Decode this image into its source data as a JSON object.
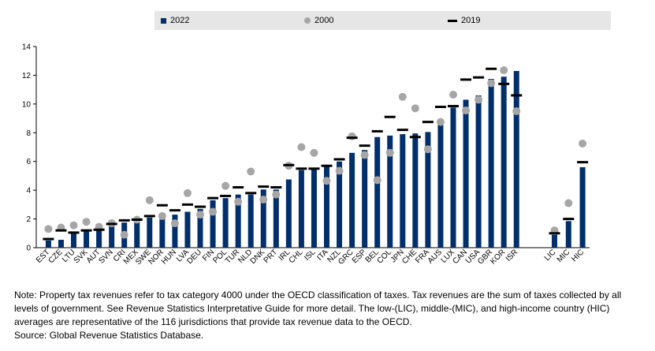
{
  "chart_data": {
    "type": "bar",
    "categories": [
      "EST",
      "CZE",
      "LTU",
      "SVK",
      "AUT",
      "SVN",
      "CRI",
      "MEX",
      "SWE",
      "NOR",
      "HUN",
      "LVA",
      "DEU",
      "FIN",
      "POL",
      "TUR",
      "NLD",
      "DNK",
      "PRT",
      "IRL",
      "CHL",
      "ISL",
      "ITA",
      "NZL",
      "GRC",
      "ESP",
      "BEL",
      "COL",
      "JPN",
      "CHE",
      "FRA",
      "AUS",
      "LUX",
      "CAN",
      "USA",
      "GBR",
      "KOR",
      "ISR",
      "LIC",
      "MIC",
      "HIC"
    ],
    "series": [
      {
        "name": "2022",
        "kind": "bar",
        "color": "#002f6c",
        "values": [
          0.5,
          0.55,
          1.05,
          1.15,
          1.25,
          1.5,
          1.75,
          2.0,
          2.1,
          2.2,
          2.3,
          2.5,
          2.7,
          3.3,
          3.45,
          3.7,
          3.7,
          4.05,
          4.05,
          4.75,
          5.4,
          5.55,
          5.75,
          6.0,
          6.6,
          6.8,
          7.7,
          7.8,
          7.9,
          7.95,
          8.05,
          8.55,
          9.75,
          10.3,
          10.6,
          11.75,
          11.9,
          12.3,
          0.9,
          1.85,
          5.6
        ]
      },
      {
        "name": "2000",
        "kind": "point",
        "color": "#a6a6a6",
        "values": [
          1.3,
          1.4,
          1.55,
          1.8,
          1.45,
          1.7,
          0.9,
          1.95,
          3.3,
          2.2,
          1.7,
          3.8,
          2.3,
          2.5,
          4.3,
          3.2,
          5.3,
          3.35,
          3.7,
          5.7,
          7.0,
          6.6,
          4.65,
          5.35,
          7.75,
          6.45,
          4.7,
          6.6,
          10.5,
          9.7,
          6.85,
          8.75,
          10.65,
          9.55,
          10.3,
          11.45,
          12.35,
          9.5,
          1.2,
          3.1,
          7.25
        ]
      },
      {
        "name": "2019",
        "kind": "dash",
        "color": "#000000",
        "values": [
          0.6,
          1.2,
          1.05,
          1.2,
          1.25,
          1.65,
          1.9,
          1.95,
          2.2,
          2.95,
          2.6,
          3.0,
          2.85,
          3.45,
          3.6,
          4.2,
          3.8,
          4.25,
          4.2,
          5.75,
          5.5,
          5.5,
          5.7,
          6.15,
          7.65,
          7.1,
          8.1,
          9.1,
          8.2,
          7.7,
          8.75,
          9.8,
          9.85,
          11.7,
          11.85,
          12.45,
          11.4,
          10.6,
          1.0,
          2.0,
          5.95
        ]
      }
    ],
    "ylim": [
      0,
      14
    ],
    "yticks": [
      0,
      2,
      4,
      6,
      8,
      10,
      12,
      14
    ],
    "title": "",
    "xlabel": "",
    "ylabel": "",
    "legend": {
      "position": "top",
      "labels": [
        "2022",
        "2000",
        "2019"
      ]
    }
  },
  "note": {
    "text": "Note: Property tax revenues refer to tax category 4000 under the OECD classification of taxes. Tax revenues are the sum of taxes collected by all levels of government. See Revenue Statistics Interpretative Guide for more detail. The low-(LIC), middle-(MIC), and high-income country (HIC) averages are representative of the 116 jurisdictions that provide tax revenue data to the OECD.",
    "source": "Source: Global Revenue Statistics Database."
  }
}
